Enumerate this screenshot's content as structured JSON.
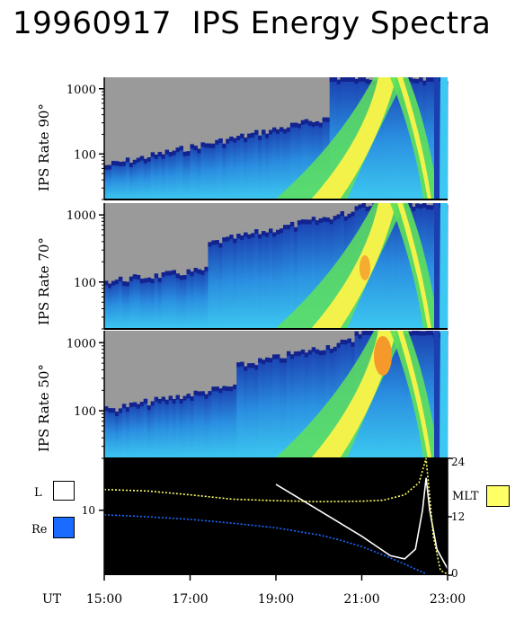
{
  "title": "19960917  IPS Energy Spectra",
  "panels": [
    {
      "ylabel": "IPS Rate 90°",
      "yticks": [
        "1000",
        "100"
      ]
    },
    {
      "ylabel": "IPS Rate 70°",
      "yticks": [
        "1000",
        "100"
      ]
    },
    {
      "ylabel": "IPS Rate 50°",
      "yticks": [
        "1000",
        "100"
      ]
    }
  ],
  "orbit": {
    "left_ticks": [
      "10"
    ],
    "right_ticks": [
      "24",
      "12",
      "0"
    ],
    "legend": [
      {
        "label": "L",
        "color": "#ffffff"
      },
      {
        "label": "Re",
        "color": "#1a6bff"
      },
      {
        "label": "MLT",
        "color": "#ffff66"
      }
    ]
  },
  "time_axis": {
    "label": "UT",
    "ticks": [
      "15:00",
      "17:00",
      "19:00",
      "21:00",
      "23:00"
    ]
  },
  "chart_data": [
    {
      "type": "heatmap",
      "panel": "IPS Rate 90°",
      "ylabel": "IPS Rate 90°",
      "yscale": "log",
      "ylim": [
        20,
        1500
      ],
      "xlim": [
        "15:00",
        "23:00"
      ],
      "note_description": "spectrogram of counts vs energy and time",
      "xticks": [
        "15:00",
        "17:00",
        "19:00",
        "21:00",
        "23:00"
      ]
    },
    {
      "type": "heatmap",
      "panel": "IPS Rate 70°",
      "ylabel": "IPS Rate 70°",
      "yscale": "log",
      "ylim": [
        20,
        1500
      ],
      "xlim": [
        "15:00",
        "23:00"
      ],
      "xticks": [
        "15:00",
        "17:00",
        "19:00",
        "21:00",
        "23:00"
      ]
    },
    {
      "type": "heatmap",
      "panel": "IPS Rate 50°",
      "ylabel": "IPS Rate 50°",
      "yscale": "log",
      "ylim": [
        20,
        1500
      ],
      "xlim": [
        "15:00",
        "23:00"
      ],
      "xticks": [
        "15:00",
        "17:00",
        "19:00",
        "21:00",
        "23:00"
      ]
    },
    {
      "type": "line",
      "xlim": [
        "15:00",
        "23:00"
      ],
      "series": [
        {
          "name": "L",
          "color": "#ffffff",
          "x": [
            "19:00",
            "19:30",
            "20:00",
            "20:30",
            "21:00",
            "21:20",
            "21:40",
            "22:00",
            "22:15",
            "22:25",
            "22:30",
            "22:35",
            "22:45",
            "23:00"
          ],
          "y": [
            14,
            12,
            10,
            8,
            6,
            4.5,
            3,
            2.5,
            4,
            10,
            15,
            10,
            4,
            1
          ]
        },
        {
          "name": "Re",
          "color": "#1a6bff",
          "x": [
            "15:00",
            "16:00",
            "17:00",
            "18:00",
            "19:00",
            "20:00",
            "20:30",
            "21:00",
            "21:30",
            "22:00",
            "22:30"
          ],
          "y": [
            9.3,
            9.0,
            8.6,
            8.0,
            7.3,
            6.2,
            5.4,
            4.4,
            3.1,
            1.7,
            0.2
          ]
        },
        {
          "name": "MLT",
          "color": "#ffff66",
          "x": [
            "15:00",
            "16:00",
            "17:00",
            "18:00",
            "19:00",
            "20:00",
            "21:00",
            "21:30",
            "22:00",
            "22:20",
            "22:30",
            "22:40",
            "22:50",
            "23:00"
          ],
          "y": [
            17.6,
            17.3,
            16.5,
            15.6,
            15.3,
            15.1,
            15.2,
            15.4,
            16.5,
            19,
            24,
            8,
            1,
            0.2
          ]
        }
      ]
    }
  ]
}
